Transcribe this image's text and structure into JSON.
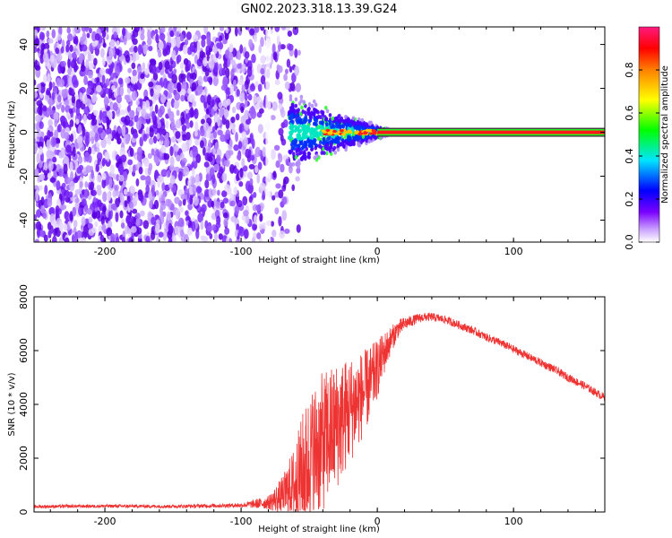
{
  "title": "GN02.2023.318.13.39.G24",
  "chart_data": [
    {
      "type": "heatmap",
      "xlabel": "Height of straight line (km)",
      "ylabel": "Frequency (Hz)",
      "xlim": [
        -252,
        167
      ],
      "ylim": [
        -50,
        48
      ],
      "x_ticks": [
        -200,
        -100,
        0,
        100
      ],
      "x_tick_labels": [
        "-200",
        "-100",
        "0",
        "100"
      ],
      "y_ticks": [
        -40,
        -20,
        0,
        20,
        40
      ],
      "y_tick_labels": [
        "-40",
        "-20",
        "0",
        "20",
        "40"
      ],
      "colorbar": {
        "label": "Normalized spectral amplitude",
        "range": [
          0,
          1
        ],
        "ticks": [
          0.0,
          0.2,
          0.4,
          0.6,
          0.8
        ],
        "tick_labels": [
          "0.0",
          "0.2",
          "0.4",
          "0.6",
          "0.8"
        ],
        "colors": [
          "#ffffff",
          "#8a2be2",
          "#0000ff",
          "#00ffff",
          "#00ff00",
          "#ffff00",
          "#ff0000",
          "#ff0080"
        ]
      },
      "features": {
        "noise_region_x": [
          -252,
          -65
        ],
        "transition_region_x": [
          -65,
          10
        ],
        "carrier_line_x": [
          0,
          167
        ],
        "carrier_frequency": 0
      }
    },
    {
      "type": "line",
      "xlabel": "Height of straight line (km)",
      "ylabel": "SNR (10 * v/v)",
      "xlim": [
        -252,
        167
      ],
      "ylim": [
        0,
        8000
      ],
      "x_ticks": [
        -200,
        -100,
        0,
        100
      ],
      "x_tick_labels": [
        "-200",
        "-100",
        "0",
        "100"
      ],
      "y_ticks": [
        0,
        2000,
        4000,
        6000,
        8000
      ],
      "y_tick_labels": [
        "0",
        "2000",
        "4000",
        "6000",
        "8000"
      ],
      "color": "#ee3333",
      "series": [
        {
          "name": "SNR",
          "x": [
            -252,
            -200,
            -150,
            -100,
            -80,
            -70,
            -60,
            -55,
            -50,
            -45,
            -40,
            -35,
            -30,
            -25,
            -20,
            -15,
            -10,
            -5,
            0,
            5,
            10,
            15,
            20,
            25,
            30,
            35,
            40,
            45,
            50,
            60,
            70,
            80,
            90,
            100,
            110,
            120,
            130,
            140,
            150,
            160,
            167
          ],
          "values": [
            200,
            220,
            210,
            250,
            350,
            600,
            1000,
            1500,
            1900,
            2300,
            2600,
            2900,
            3200,
            3500,
            3800,
            4100,
            4400,
            4800,
            5300,
            5900,
            6400,
            6800,
            7000,
            7100,
            7200,
            7250,
            7250,
            7200,
            7150,
            6950,
            6750,
            6500,
            6300,
            6050,
            5800,
            5550,
            5300,
            5000,
            4750,
            4450,
            4250
          ],
          "spread": [
            60,
            60,
            60,
            80,
            250,
            700,
            1600,
            2200,
            2500,
            2600,
            2600,
            2500,
            2400,
            2200,
            2000,
            1800,
            1600,
            1400,
            1100,
            800,
            500,
            350,
            250,
            200,
            180,
            160,
            160,
            150,
            150,
            150,
            150,
            150,
            150,
            150,
            150,
            150,
            150,
            150,
            150,
            150,
            150
          ]
        }
      ]
    }
  ]
}
